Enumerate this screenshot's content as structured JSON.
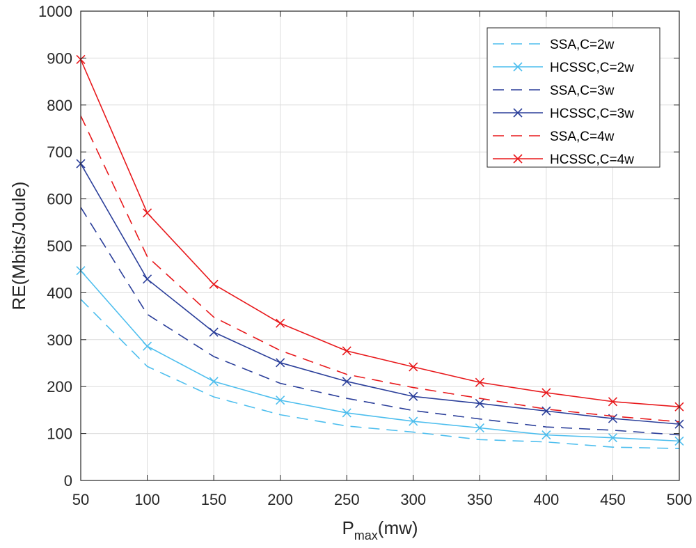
{
  "chart_data": {
    "type": "line",
    "title": "",
    "xlabel": "P",
    "xlabel_sub": "max",
    "xlabel_unit": "(mw)",
    "ylabel": "RE(Mbits/Joule)",
    "x": [
      50,
      100,
      150,
      200,
      250,
      300,
      350,
      400,
      450,
      500
    ],
    "xlim": [
      50,
      500
    ],
    "ylim": [
      0,
      1000
    ],
    "xticks": [
      "50",
      "100",
      "150",
      "200",
      "250",
      "300",
      "350",
      "400",
      "450",
      "500"
    ],
    "yticks": [
      "0",
      "100",
      "200",
      "300",
      "400",
      "500",
      "600",
      "700",
      "800",
      "900",
      "1000"
    ],
    "grid": true,
    "legend_position": "top-right",
    "series": [
      {
        "name": "SSA,C=2w",
        "color": "#4DBEEE",
        "style": "dashed",
        "marker": "none",
        "values": [
          386,
          243,
          178,
          140,
          116,
          103,
          87,
          82,
          71,
          68
        ]
      },
      {
        "name": "HCSSC,C=2w",
        "color": "#4DBEEE",
        "style": "solid",
        "marker": "x",
        "values": [
          447,
          286,
          211,
          171,
          144,
          126,
          112,
          97,
          91,
          84
        ]
      },
      {
        "name": "SSA,C=3w",
        "color": "#2B3F9A",
        "style": "dashed",
        "marker": "none",
        "values": [
          582,
          354,
          264,
          207,
          175,
          149,
          131,
          114,
          107,
          97
        ]
      },
      {
        "name": "HCSSC,C=3w",
        "color": "#2B3F9A",
        "style": "solid",
        "marker": "x",
        "values": [
          675,
          429,
          316,
          251,
          211,
          179,
          164,
          148,
          132,
          120
        ]
      },
      {
        "name": "SSA,C=4w",
        "color": "#E8191C",
        "style": "dashed",
        "marker": "none",
        "values": [
          777,
          477,
          348,
          277,
          226,
          198,
          175,
          152,
          137,
          125
        ]
      },
      {
        "name": "HCSSC,C=4w",
        "color": "#E8191C",
        "style": "solid",
        "marker": "x",
        "values": [
          897,
          570,
          418,
          335,
          276,
          242,
          209,
          187,
          168,
          157
        ]
      }
    ]
  }
}
